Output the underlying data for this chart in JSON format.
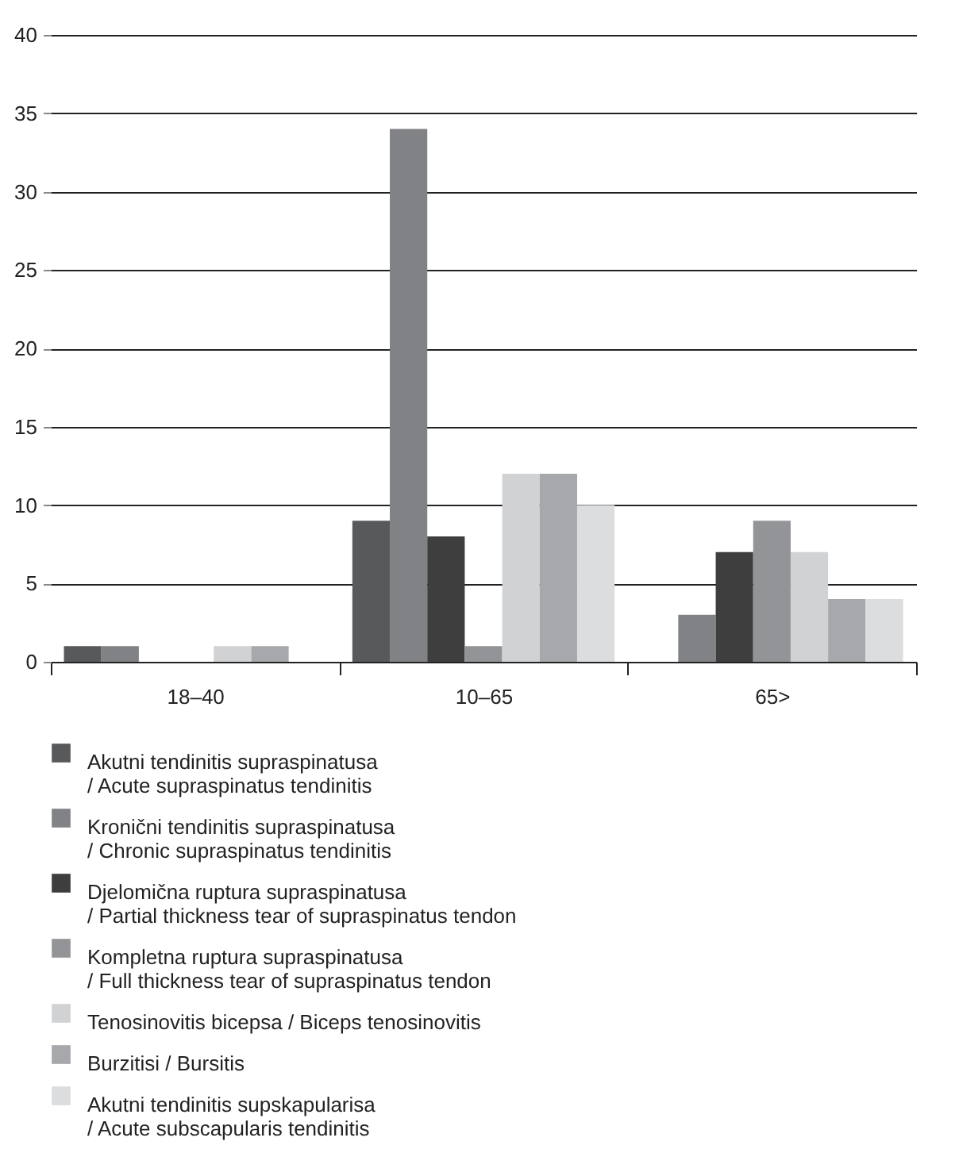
{
  "chart_data": {
    "type": "bar",
    "categories": [
      "18–40",
      "10–65",
      "65>"
    ],
    "series": [
      {
        "name": "Akutni tendinitis supraspinatusa\n/ Acute supraspinatus tendinitis",
        "color": "#58595b",
        "values": [
          1,
          9,
          0
        ]
      },
      {
        "name": "Kronični tendinitis supraspinatusa\n/ Chronic supraspinatus tendinitis",
        "color": "#818285",
        "values": [
          1,
          34,
          3
        ]
      },
      {
        "name": "Djelomična ruptura supraspinatusa\n/ Partial thickness tear of supraspinatus tendon",
        "color": "#3e3e3f",
        "values": [
          0,
          8,
          7
        ]
      },
      {
        "name": "Kompletna ruptura supraspinatusa\n/ Full thickness tear of supraspinatus tendon",
        "color": "#939497",
        "values": [
          0,
          1,
          9
        ]
      },
      {
        "name": "Tenosinovitis bicepsa / Biceps tenosinovitis",
        "color": "#d1d2d4",
        "values": [
          1,
          12,
          7
        ]
      },
      {
        "name": "Burzitisi / Bursitis",
        "color": "#a7a8ab",
        "values": [
          1,
          12,
          4
        ]
      },
      {
        "name": "Akutni tendinitis supskapularisa\n/ Acute subscapularis tendinitis",
        "color": "#dcdddf",
        "values": [
          0,
          10,
          4
        ]
      }
    ],
    "ylim": [
      0,
      40
    ],
    "yticks": [
      0,
      5,
      10,
      15,
      20,
      25,
      30,
      35,
      40
    ],
    "grid": "y",
    "legend": "bottom"
  }
}
